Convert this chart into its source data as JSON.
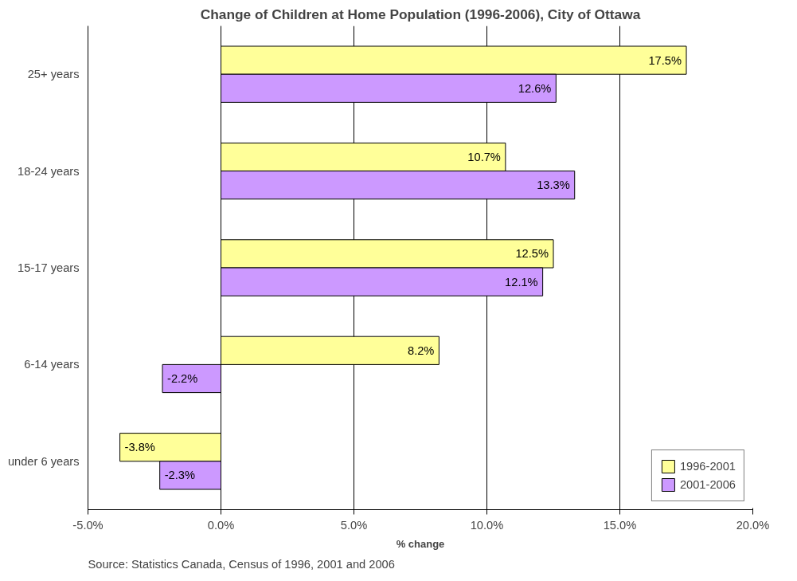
{
  "chart_data": {
    "type": "bar",
    "orientation": "horizontal",
    "title": "Change of Children at Home Population (1996-2006), City of Ottawa",
    "xlabel": "% change",
    "categories": [
      "25+ years",
      "18-24 years",
      "15-17 years",
      "6-14 years",
      "under 6 years"
    ],
    "series": [
      {
        "name": "1996-2001",
        "color": "#ffff99",
        "values": [
          17.5,
          10.7,
          12.5,
          8.2,
          -3.8
        ],
        "value_labels": [
          "17.5%",
          "10.7%",
          "12.5%",
          "8.2%",
          "-3.8%"
        ]
      },
      {
        "name": "2001-2006",
        "color": "#cc99ff",
        "values": [
          12.6,
          13.3,
          12.1,
          -2.2,
          -2.3
        ],
        "value_labels": [
          "12.6%",
          "13.3%",
          "12.1%",
          "-2.2%",
          "-2.3%"
        ]
      }
    ],
    "xlim": [
      -5,
      20
    ],
    "xticks": [
      {
        "value": -5,
        "label": "-5.0%"
      },
      {
        "value": 0,
        "label": "0.0%"
      },
      {
        "value": 5,
        "label": "5.0%"
      },
      {
        "value": 10,
        "label": "10.0%"
      },
      {
        "value": 15,
        "label": "15.0%"
      },
      {
        "value": 20,
        "label": "20.0%"
      }
    ],
    "grid": "x",
    "legend": "bottom right",
    "annotations": [
      "Source: Statistics Canada, Census of 1996, 2001 and 2006"
    ]
  }
}
